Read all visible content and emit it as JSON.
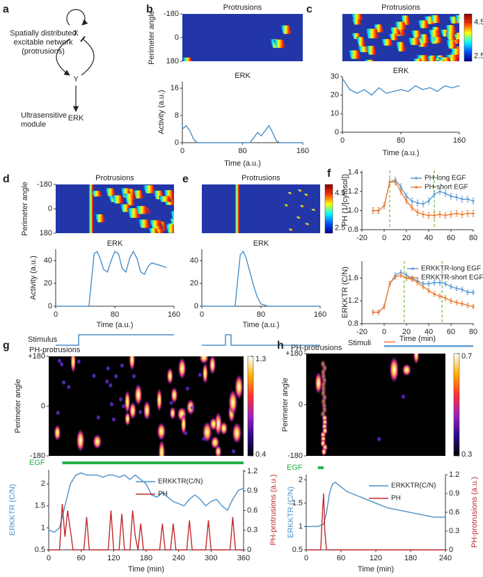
{
  "diagram": {
    "panel": "a",
    "x": "X",
    "y": "Y",
    "erk": "ERK",
    "network_label": [
      "Spatially distributed",
      "excitable network",
      "(protrusions)"
    ],
    "module_label": [
      "Ultrasensitive",
      "module"
    ]
  },
  "chart_data": [
    {
      "type": "heatmap",
      "panel": "b",
      "title": "Protrusions",
      "ylabel": "Perimeter angle",
      "ylim": [
        180,
        -180
      ],
      "yticks": [
        -180,
        0,
        180
      ],
      "colormap": "jet"
    },
    {
      "type": "line",
      "title": "ERK",
      "xlabel": "Time (a.u.)",
      "ylabel": "Activity (a.u.)",
      "xlim": [
        0,
        160
      ],
      "xticks": [
        0,
        80,
        160
      ],
      "ylim": [
        0,
        18
      ],
      "yticks": [
        0,
        8,
        16
      ],
      "series": [
        {
          "color": "#4a8fc8",
          "x": [
            0,
            5,
            10,
            15,
            20,
            30,
            60,
            90,
            95,
            100,
            105,
            110,
            115,
            120,
            125,
            130,
            160
          ],
          "values": [
            4,
            5,
            3.5,
            1,
            0,
            0,
            0,
            0,
            1.5,
            3,
            2,
            3.5,
            5,
            3,
            0.5,
            0,
            0
          ]
        }
      ]
    },
    {
      "type": "heatmap",
      "panel": "c",
      "title": "Protrusions",
      "colormap": "jet",
      "colorbar": {
        "clim": [
          2.2,
          5
        ],
        "ticks": [
          2.5,
          4.5
        ]
      }
    },
    {
      "type": "line",
      "title": "ERK",
      "xlabel": "Time (a.u.)",
      "xlim": [
        0,
        160
      ],
      "xticks": [
        0,
        80,
        160
      ],
      "ylim": [
        0,
        30
      ],
      "yticks": [
        0,
        10,
        20,
        30
      ],
      "series": [
        {
          "color": "#4a8fc8",
          "x": [
            0,
            10,
            20,
            30,
            40,
            50,
            60,
            70,
            80,
            90,
            100,
            110,
            120,
            130,
            140,
            150,
            160
          ],
          "values": [
            29,
            23,
            21,
            23,
            20,
            24,
            21,
            22,
            23,
            22,
            25,
            23,
            24,
            22,
            25,
            24,
            25
          ]
        }
      ]
    },
    {
      "type": "heatmap",
      "panel": "d",
      "title": "Protrusions",
      "ylabel": "Perimeter angle",
      "ylim": [
        180,
        -180
      ],
      "yticks": [
        -180,
        0,
        180
      ],
      "colormap": "jet"
    },
    {
      "type": "line",
      "title": "ERK",
      "xlabel": "Time (a.u.)",
      "ylabel": "Activity (a.u.)",
      "xlim": [
        0,
        160
      ],
      "xticks": [
        0,
        80,
        160
      ],
      "ylim": [
        0,
        50
      ],
      "yticks": [
        0,
        20,
        40
      ],
      "stimulus_label": "Stimulus",
      "series": [
        {
          "color": "#4a8fc8",
          "x": [
            0,
            40,
            45,
            48,
            52,
            56,
            60,
            65,
            70,
            75,
            80,
            85,
            90,
            95,
            100,
            105,
            110,
            115,
            120,
            125,
            130,
            140,
            150
          ],
          "values": [
            0,
            0,
            0,
            20,
            46,
            48,
            42,
            32,
            30,
            40,
            48,
            46,
            33,
            30,
            42,
            48,
            42,
            30,
            28,
            35,
            38,
            36,
            34
          ]
        }
      ]
    },
    {
      "type": "heatmap",
      "panel": "e",
      "title": "Protrusions",
      "colormap": "jet",
      "colorbar": {
        "clim": [
          2.2,
          5
        ],
        "ticks": [
          2.5,
          4.5
        ]
      }
    },
    {
      "type": "line",
      "title": "ERK",
      "xlabel": "Time (a.u.)",
      "xlim": [
        0,
        160
      ],
      "xticks": [
        0,
        80,
        160
      ],
      "ylim": [
        0,
        50
      ],
      "yticks": [
        0,
        20,
        40
      ],
      "series": [
        {
          "color": "#4a8fc8",
          "x": [
            0,
            40,
            45,
            48,
            52,
            56,
            60,
            65,
            70,
            75,
            80,
            90,
            160
          ],
          "values": [
            0,
            0,
            0,
            20,
            45,
            48,
            42,
            30,
            18,
            8,
            2,
            0,
            0
          ]
        }
      ]
    },
    {
      "type": "line",
      "panel": "f",
      "ylabel": "PH (1/[cytosol])",
      "xlim": [
        -20,
        80
      ],
      "xticks": [
        -20,
        0,
        20,
        40,
        60,
        80
      ],
      "ylim": [
        0.8,
        1.42
      ],
      "yticks": [
        0.8,
        {
          "value": 1,
          "label": "1.0"
        },
        1.2,
        1.4
      ],
      "legend": "upper right",
      "vlines": [
        5,
        45
      ],
      "vline_color": "#6aba3a",
      "x": [
        -10,
        -5,
        0,
        5,
        10,
        15,
        20,
        25,
        30,
        35,
        40,
        45,
        50,
        55,
        60,
        65,
        70,
        75,
        80
      ],
      "series": [
        {
          "name": "PH-long EGF",
          "color": "#5b9bd5",
          "values": [
            1.0,
            1.0,
            1.05,
            1.3,
            1.32,
            1.25,
            1.15,
            1.1,
            1.08,
            1.07,
            1.1,
            1.17,
            1.2,
            1.18,
            1.15,
            1.14,
            1.12,
            1.12,
            1.1
          ],
          "errors": [
            0.03,
            0.03,
            0.03,
            0.03,
            0.03,
            0.03,
            0.03,
            0.03,
            0.03,
            0.03,
            0.03,
            0.03,
            0.03,
            0.03,
            0.03,
            0.03,
            0.03,
            0.03,
            0.03
          ]
        },
        {
          "name": "PH-short EGF",
          "color": "#ed7d31",
          "values": [
            1.0,
            1.0,
            1.05,
            1.3,
            1.3,
            1.2,
            1.1,
            1.03,
            0.98,
            0.96,
            0.95,
            0.95,
            0.96,
            0.95,
            0.96,
            0.97,
            0.96,
            0.97,
            0.97
          ],
          "errors": [
            0.03,
            0.03,
            0.03,
            0.03,
            0.03,
            0.03,
            0.03,
            0.03,
            0.03,
            0.03,
            0.03,
            0.03,
            0.03,
            0.03,
            0.03,
            0.03,
            0.03,
            0.03,
            0.03
          ]
        }
      ]
    },
    {
      "type": "line",
      "xlabel": "Time (min)",
      "ylabel": "ERKKTR (C/N)",
      "xlim": [
        -20,
        80
      ],
      "xticks": [
        -20,
        0,
        20,
        40,
        60,
        80
      ],
      "ylim": [
        0.8,
        1.9
      ],
      "yticks": [
        0.8,
        1.2,
        1.6
      ],
      "legend": "upper right",
      "vlines": [
        18,
        52
      ],
      "vline_color": "#6aba3a",
      "stimuli": {
        "label": "Stimuli",
        "bars": [
          {
            "color": "#f4a582",
            "start": 0,
            "end": 10
          },
          {
            "color": "#5b9bd5",
            "start": 0,
            "end": 80
          }
        ]
      },
      "x": [
        -10,
        -5,
        0,
        5,
        10,
        15,
        20,
        25,
        30,
        35,
        40,
        45,
        50,
        55,
        60,
        65,
        70,
        75,
        80
      ],
      "series": [
        {
          "name": "ERKKTR-long EGF",
          "color": "#5b9bd5",
          "values": [
            1.0,
            1.0,
            1.1,
            1.5,
            1.65,
            1.7,
            1.65,
            1.6,
            1.55,
            1.5,
            1.5,
            1.52,
            1.52,
            1.5,
            1.45,
            1.42,
            1.4,
            1.35,
            1.35
          ],
          "errors": [
            0.04,
            0.04,
            0.04,
            0.04,
            0.04,
            0.04,
            0.04,
            0.04,
            0.04,
            0.04,
            0.04,
            0.04,
            0.04,
            0.04,
            0.04,
            0.04,
            0.04,
            0.04,
            0.04
          ]
        },
        {
          "name": "ERKKTR-short EGF",
          "color": "#ed7d31",
          "values": [
            1.0,
            1.0,
            1.1,
            1.5,
            1.62,
            1.65,
            1.6,
            1.58,
            1.52,
            1.45,
            1.38,
            1.32,
            1.28,
            1.25,
            1.2,
            1.17,
            1.15,
            1.12,
            1.1
          ],
          "errors": [
            0.04,
            0.04,
            0.04,
            0.04,
            0.04,
            0.04,
            0.04,
            0.04,
            0.04,
            0.04,
            0.04,
            0.04,
            0.04,
            0.04,
            0.04,
            0.04,
            0.04,
            0.04,
            0.04
          ]
        }
      ]
    },
    {
      "type": "heatmap",
      "panel": "g",
      "title": "PH-protrusions",
      "ylabel": "Perimeter angle",
      "ylim": [
        -180,
        180
      ],
      "yticks": [
        {
          "value": 180,
          "label": "+180"
        },
        0,
        -180
      ],
      "colormap": "fire",
      "colorbar": {
        "clim": [
          0.4,
          1.3
        ],
        "ticks": [
          0.4,
          1.3
        ]
      }
    },
    {
      "type": "line",
      "xlabel": "Time (min)",
      "ylabel": "ERKKTR (C/N)",
      "y2label": "PH-protrusions (a.u.)",
      "xlim": [
        0,
        360
      ],
      "xticks": [
        0,
        60,
        120,
        180,
        240,
        300,
        360
      ],
      "ylim": [
        0.5,
        2.32
      ],
      "yticks": [
        0.5,
        1,
        1.5,
        2
      ],
      "y2lim": [
        0,
        1.22
      ],
      "y2ticks": [
        0,
        0.3,
        0.6,
        0.9,
        1.2
      ],
      "legend": "upper center",
      "egf": {
        "label": "EGF",
        "start": 25,
        "end": 360,
        "color": "#22b34a"
      },
      "series": [
        {
          "name": "ERKKTR(C/N)",
          "color": "#4a8fc8",
          "x": [
            0,
            10,
            20,
            30,
            40,
            50,
            60,
            70,
            80,
            90,
            100,
            110,
            120,
            130,
            140,
            150,
            160,
            170,
            180,
            190,
            200,
            210,
            220,
            230,
            240,
            250,
            260,
            270,
            280,
            290,
            300,
            310,
            320,
            330,
            340,
            350,
            360
          ],
          "values": [
            0.95,
            0.9,
            1.0,
            1.5,
            2.0,
            2.2,
            2.25,
            2.2,
            2.2,
            2.2,
            2.15,
            2.2,
            2.2,
            2.15,
            2.2,
            2.1,
            2.2,
            2.1,
            2.0,
            1.75,
            1.7,
            1.8,
            1.7,
            1.6,
            1.55,
            1.5,
            1.65,
            1.75,
            1.65,
            1.5,
            1.6,
            1.65,
            1.5,
            1.4,
            1.65,
            1.85,
            1.9
          ]
        },
        {
          "name": "PH",
          "color": "#c0282a",
          "axis": "y2",
          "x": [
            0,
            20,
            25,
            30,
            35,
            40,
            45,
            65,
            70,
            75,
            110,
            115,
            120,
            130,
            135,
            140,
            150,
            155,
            160,
            165,
            170,
            175,
            205,
            210,
            215,
            225,
            230,
            235,
            255,
            260,
            265,
            290,
            295,
            300,
            335,
            340,
            345,
            360
          ],
          "values": [
            0,
            0,
            0.7,
            0.2,
            0.6,
            0.3,
            0,
            0,
            0.5,
            0,
            0,
            0.6,
            0,
            0,
            0.55,
            0,
            0,
            0.6,
            0.2,
            0,
            0.4,
            0,
            0,
            0.4,
            0,
            0,
            0.4,
            0,
            0,
            0.45,
            0,
            0,
            0.45,
            0,
            0,
            0.5,
            0,
            0
          ]
        }
      ]
    },
    {
      "type": "heatmap",
      "panel": "h",
      "title": "PH-protrusions",
      "ylabel": "Perimeter angle",
      "ylim": [
        -180,
        180
      ],
      "yticks": [
        {
          "value": 180,
          "label": "+180"
        },
        0,
        -180
      ],
      "colormap": "fire",
      "colorbar": {
        "clim": [
          0.3,
          0.7
        ],
        "ticks": [
          0.3,
          0.7
        ]
      }
    },
    {
      "type": "line",
      "xlabel": "Time (min)",
      "ylabel": "ERKKTR (C/N)",
      "y2label": "PH-protrusions (a.u.)",
      "xlim": [
        0,
        240
      ],
      "xticks": [
        0,
        60,
        120,
        180,
        240
      ],
      "ylim": [
        0.5,
        2.11
      ],
      "yticks": [
        0.5,
        1,
        1.5,
        2
      ],
      "y2lim": [
        0,
        1.2
      ],
      "y2ticks": [
        0,
        0.3,
        0.6,
        0.9,
        1.2
      ],
      "legend": "upper center",
      "egf": {
        "label": "EGF",
        "start": 20,
        "end": 30,
        "color": "#22b34a"
      },
      "series": [
        {
          "name": "ERKKTR(C/N)",
          "color": "#4a8fc8",
          "x": [
            0,
            10,
            20,
            30,
            35,
            40,
            45,
            50,
            60,
            70,
            80,
            90,
            100,
            120,
            140,
            160,
            180,
            200,
            220,
            240
          ],
          "values": [
            1.0,
            1.0,
            1.0,
            1.05,
            1.3,
            1.7,
            1.9,
            1.95,
            1.85,
            1.75,
            1.7,
            1.65,
            1.6,
            1.5,
            1.4,
            1.35,
            1.3,
            1.25,
            1.2,
            1.2
          ]
        },
        {
          "name": "PH",
          "color": "#c0282a",
          "axis": "y2",
          "x": [
            0,
            25,
            28,
            30,
            32,
            35,
            240
          ],
          "values": [
            0,
            0,
            0.6,
            0.9,
            0.3,
            0,
            0
          ]
        }
      ]
    }
  ]
}
